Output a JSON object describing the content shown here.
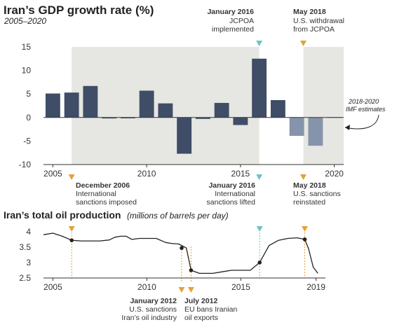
{
  "colors": {
    "bar_actual": "#3f4d67",
    "bar_estimate": "#8594ab",
    "shade": "#e6e6e2",
    "orange_marker": "#e3a232",
    "teal_marker": "#6cc3c8",
    "line": "#222222"
  },
  "chart_data": [
    {
      "type": "bar",
      "title": "Iran’s GDP growth rate (%)",
      "subtitle": "2005–2020",
      "x": [
        2005,
        2006,
        2007,
        2008,
        2009,
        2010,
        2011,
        2012,
        2013,
        2014,
        2015,
        2016,
        2017,
        2018,
        2019,
        2020
      ],
      "values": [
        5.1,
        5.3,
        6.7,
        -0.2,
        -0.1,
        5.7,
        3.0,
        -7.7,
        -0.3,
        3.1,
        -1.6,
        12.5,
        3.7,
        -3.9,
        -6.0,
        0.1
      ],
      "estimate_years": [
        2018,
        2019,
        2020
      ],
      "xlim": [
        2004.5,
        2020.5
      ],
      "ylim": [
        -10,
        15
      ],
      "yticks": [
        15,
        10,
        5,
        0,
        -5,
        -10
      ],
      "xticks": [
        2005,
        2010,
        2015,
        2020
      ],
      "xtick_labels": [
        "2005",
        "2010",
        "2015",
        "2020"
      ],
      "shaded_ranges": [
        [
          2006.0,
          2016.0
        ],
        [
          2018.35,
          2020.5
        ]
      ],
      "markers": [
        {
          "x": 2006.0,
          "pos": "bottom",
          "color": "orange",
          "label": "December 2006",
          "text": [
            "International",
            "sanctions imposed"
          ]
        },
        {
          "x": 2016.0,
          "pos": "bottom",
          "color": "teal",
          "label": "January 2016",
          "text": [
            "International",
            "sanctions lifted"
          ]
        },
        {
          "x": 2016.0,
          "pos": "top",
          "color": "teal",
          "label": "January 2016",
          "text": [
            "JCPOA",
            "implemented"
          ]
        },
        {
          "x": 2018.35,
          "pos": "top",
          "color": "orange",
          "label": "May 2018",
          "text": [
            "U.S. withdrawal",
            "from JCPOA"
          ]
        },
        {
          "x": 2018.35,
          "pos": "bottom",
          "color": "orange",
          "label": "May 2018",
          "text": [
            "U.S. sanctions",
            "reinstated"
          ]
        }
      ],
      "side_note": [
        "2018-2020",
        "IMF estimates"
      ]
    },
    {
      "type": "line",
      "title": "Iran’s total oil production",
      "title_unit": "(millions of barrels per day)",
      "x": [
        2004.5,
        2005.0,
        2005.5,
        2006.0,
        2006.5,
        2007.0,
        2007.5,
        2008.0,
        2008.3,
        2008.6,
        2008.9,
        2009.2,
        2009.6,
        2010.0,
        2010.5,
        2011.0,
        2011.3,
        2011.7,
        2012.1,
        2012.35,
        2012.8,
        2013.5,
        2014.0,
        2014.5,
        2015.0,
        2015.5,
        2016.0,
        2016.5,
        2017.0,
        2017.5,
        2018.0,
        2018.4,
        2018.6,
        2018.85,
        2019.1
      ],
      "values": [
        3.9,
        3.95,
        3.85,
        3.72,
        3.7,
        3.7,
        3.7,
        3.73,
        3.82,
        3.85,
        3.85,
        3.75,
        3.78,
        3.78,
        3.78,
        3.65,
        3.62,
        3.6,
        3.47,
        2.75,
        2.65,
        2.65,
        2.7,
        2.75,
        2.75,
        2.75,
        3.0,
        3.55,
        3.72,
        3.78,
        3.8,
        3.75,
        3.45,
        2.85,
        2.65
      ],
      "highlight_points": [
        {
          "x": 2006.0,
          "y": 3.72
        },
        {
          "x": 2011.85,
          "y": 3.47
        },
        {
          "x": 2012.35,
          "y": 2.75
        },
        {
          "x": 2016.0,
          "y": 3.0
        },
        {
          "x": 2018.4,
          "y": 3.75
        }
      ],
      "xlim": [
        2004.5,
        2019.5
      ],
      "ylim": [
        2.5,
        4.2
      ],
      "yticks": [
        4,
        3.5,
        3,
        2.5
      ],
      "ytick_labels": [
        "4",
        "3.5",
        "3",
        "2.5"
      ],
      "xticks": [
        2005,
        2010,
        2015,
        2019
      ],
      "xtick_labels": [
        "2005",
        "2010",
        "2015",
        "2019"
      ],
      "vlines": [
        {
          "x": 2006.0,
          "color": "orange",
          "marker": "top"
        },
        {
          "x": 2011.85,
          "color": "orange",
          "marker": "bottom"
        },
        {
          "x": 2012.35,
          "color": "orange",
          "marker": "bottom"
        },
        {
          "x": 2016.0,
          "color": "teal",
          "marker": "top"
        },
        {
          "x": 2018.4,
          "color": "orange",
          "marker": "top"
        }
      ],
      "annotations": [
        {
          "label": "January 2012",
          "text": [
            "U.S. sanctions",
            "Iran’s oil industry"
          ]
        },
        {
          "label": "July 2012",
          "text": [
            "EU bans Iranian",
            "oil exports"
          ]
        }
      ]
    }
  ]
}
